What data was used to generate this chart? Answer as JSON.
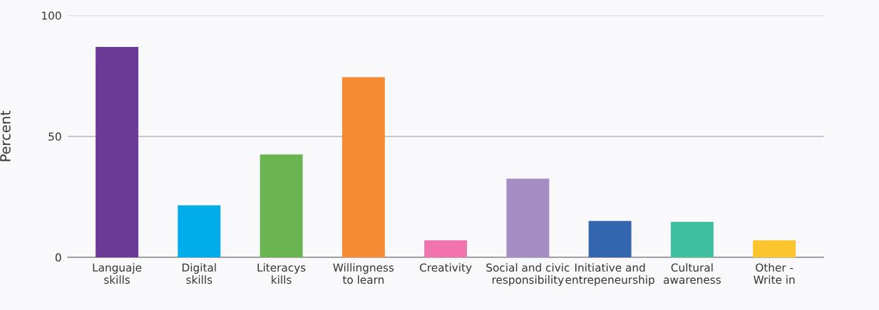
{
  "chart_data": {
    "type": "bar",
    "ylabel": "Percent",
    "categories": [
      "Languaje\nskills",
      "Digital\nskills",
      "Literacys\nkills",
      "Willingness\nto learn",
      "Creativity",
      "Social and civic\nresponsibility",
      "Initiative and\nentrepeneurship",
      "Cultural\nawareness",
      "Other -\nWrite in"
    ],
    "values": [
      87,
      21.5,
      42.5,
      74.5,
      7,
      32.5,
      15,
      14.7,
      7
    ],
    "colors": [
      "#6a3a96",
      "#00adea",
      "#6ab552",
      "#f58b32",
      "#f173ab",
      "#a48dc3",
      "#3466b0",
      "#3ebf9e",
      "#fcc52e"
    ],
    "ylim": [
      0,
      100
    ],
    "yticks": [
      0,
      50,
      100
    ],
    "grid": "y"
  }
}
